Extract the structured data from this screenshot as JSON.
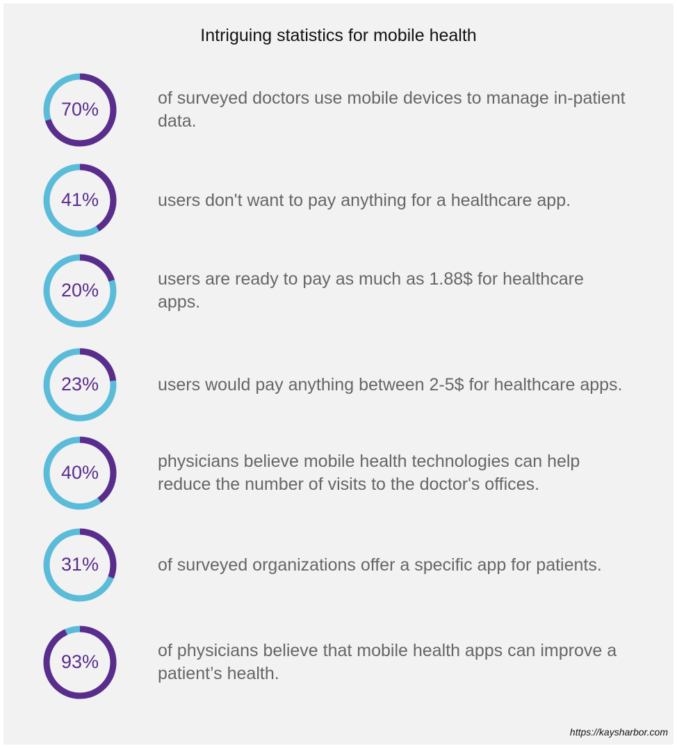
{
  "chart_data": {
    "type": "progress-ring",
    "title": "Intriguing statistics for mobile health",
    "categories": [
      "of surveyed doctors use mobile devices to manage in-patient data.",
      "users don't want to pay anything for a healthcare app.",
      "users are ready to pay as much as 1.88$ for healthcare apps.",
      "users would pay anything between 2-5$ for healthcare apps.",
      "physicians believe mobile health technologies can help reduce the number of visits to the doctor's offices.",
      "of surveyed organizations offer a specific app for patients.",
      "of physicians believe that mobile health apps can improve a patient’s health."
    ],
    "values": [
      70,
      41,
      20,
      23,
      40,
      31,
      93
    ],
    "value_labels": [
      "70%",
      "41%",
      "20%",
      "23%",
      "40%",
      "31%",
      "93%"
    ],
    "ylim": [
      0,
      100
    ],
    "color": "#5a2d8c",
    "track_color": "#5bbcd9"
  },
  "source": "https://kaysharbor.com"
}
